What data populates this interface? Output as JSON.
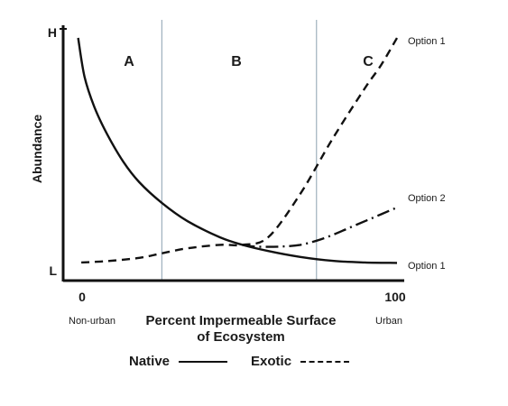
{
  "chart_data": {
    "type": "line",
    "xlabel": "Percent Impermeable Surface of Ecosystem",
    "xlabel_lines": [
      "Percent Impermeable Surface",
      "of Ecosystem"
    ],
    "ylabel": "Abundance",
    "xlim": [
      0,
      100
    ],
    "ylim": [
      0,
      1
    ],
    "x_ticks": [
      {
        "label": "0",
        "x": 0
      },
      {
        "label": "100",
        "x": 100
      }
    ],
    "x_tick_sublabels": [
      "Non-urban",
      "Urban"
    ],
    "y_ticks": [
      {
        "label": "L",
        "y": 0
      },
      {
        "label": "H",
        "y": 1
      }
    ],
    "zone_boundaries": [
      27,
      75
    ],
    "zones": [
      {
        "label": "A",
        "x": 17
      },
      {
        "label": "B",
        "x": 51
      },
      {
        "label": "C",
        "x": 91
      }
    ],
    "series": [
      {
        "name": "Native",
        "style": "solid",
        "x": [
          1,
          3,
          6,
          10,
          15,
          20,
          27,
          35,
          45,
          52,
          60,
          70,
          80,
          90,
          100
        ],
        "y": [
          1.0,
          0.83,
          0.7,
          0.58,
          0.46,
          0.37,
          0.28,
          0.2,
          0.13,
          0.097,
          0.07,
          0.044,
          0.027,
          0.02,
          0.018
        ]
      },
      {
        "name": "Exotic",
        "style": "dashed",
        "x": [
          2,
          10,
          20,
          27,
          35,
          45,
          52,
          60,
          70,
          80,
          90,
          95,
          100
        ],
        "y": [
          0.02,
          0.026,
          0.04,
          0.06,
          0.082,
          0.097,
          0.097,
          0.13,
          0.32,
          0.56,
          0.78,
          0.88,
          1.0
        ],
        "end_label": "Option 1"
      },
      {
        "name": "Option 2",
        "style": "dashdot",
        "x": [
          52,
          55,
          60,
          65,
          70,
          75,
          80,
          85,
          90,
          95,
          100
        ],
        "y": [
          0.097,
          0.09,
          0.088,
          0.09,
          0.097,
          0.115,
          0.14,
          0.17,
          0.2,
          0.23,
          0.26
        ],
        "end_label": "Option 2"
      }
    ],
    "native_end_label": "Option 1",
    "legend": [
      {
        "name": "Native",
        "style": "solid"
      },
      {
        "name": "Exotic",
        "style": "dashed"
      }
    ],
    "legend_position": "bottom"
  }
}
